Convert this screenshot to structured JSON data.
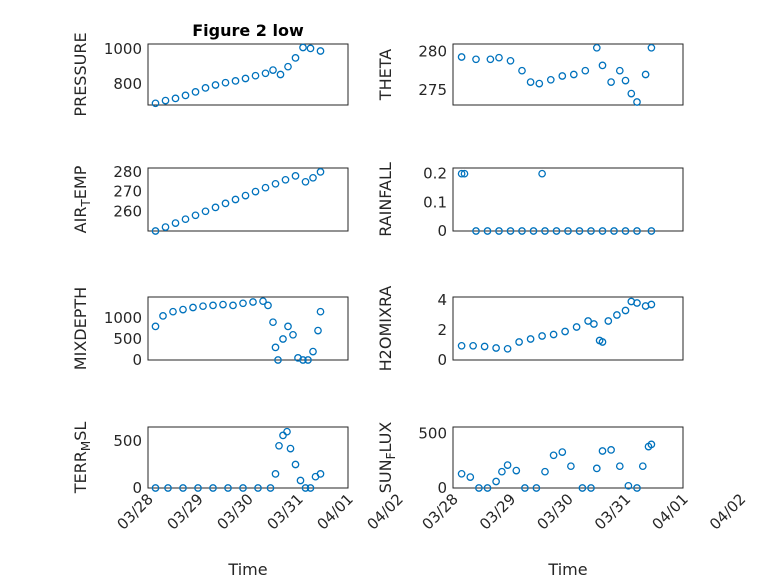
{
  "chart_data": [
    {
      "type": "scatter",
      "title": "Figure 2 low",
      "ylabel_main": "PRESSURE",
      "ylabel_sub": "",
      "ylabel_tail": "",
      "yticks": [
        800,
        1000
      ],
      "ylim": [
        680,
        1030
      ],
      "xlim": [
        0,
        4
      ],
      "xtick_labels": [],
      "xlabel": "",
      "x": [
        0.15,
        0.35,
        0.55,
        0.75,
        0.95,
        1.15,
        1.35,
        1.55,
        1.75,
        1.95,
        2.15,
        2.35,
        2.5,
        2.65,
        2.8,
        2.95,
        3.1,
        3.25,
        3.45
      ],
      "y": [
        690,
        705,
        718,
        735,
        755,
        778,
        795,
        808,
        818,
        832,
        848,
        862,
        880,
        855,
        900,
        950,
        1010,
        1005,
        990
      ]
    },
    {
      "type": "scatter",
      "title": "",
      "ylabel_main": "THETA",
      "ylabel_sub": "",
      "ylabel_tail": "",
      "yticks": [
        275,
        280
      ],
      "ylim": [
        273,
        281
      ],
      "xlim": [
        0,
        4
      ],
      "xtick_labels": [],
      "xlabel": "",
      "x": [
        0.15,
        0.4,
        0.65,
        0.8,
        1.0,
        1.2,
        1.35,
        1.5,
        1.7,
        1.9,
        2.1,
        2.3,
        2.5,
        2.6,
        2.75,
        2.9,
        3.0,
        3.1,
        3.2,
        3.35,
        3.45
      ],
      "y": [
        279.3,
        279.0,
        279.0,
        279.2,
        278.8,
        277.5,
        276.0,
        275.8,
        276.3,
        276.8,
        277.0,
        277.5,
        280.5,
        278.2,
        276.0,
        277.5,
        276.2,
        274.5,
        273.4,
        277.0,
        280.5
      ]
    },
    {
      "type": "scatter",
      "title": "",
      "ylabel_main": "AIR",
      "ylabel_sub": "T",
      "ylabel_tail": "EMP",
      "yticks": [
        260,
        270,
        280
      ],
      "ylim": [
        250,
        282
      ],
      "xlim": [
        0,
        4
      ],
      "xtick_labels": [],
      "xlabel": "",
      "x": [
        0.15,
        0.35,
        0.55,
        0.75,
        0.95,
        1.15,
        1.35,
        1.55,
        1.75,
        1.95,
        2.15,
        2.35,
        2.55,
        2.75,
        2.95,
        3.15,
        3.3,
        3.45
      ],
      "y": [
        250,
        252,
        254,
        256,
        258,
        260,
        262,
        264,
        266,
        268,
        270,
        272,
        274,
        276,
        278,
        275,
        277,
        280
      ]
    },
    {
      "type": "scatter",
      "title": "",
      "ylabel_main": "RAINFALL",
      "ylabel_sub": "",
      "ylabel_tail": "",
      "yticks": [
        0,
        0.1,
        0.2
      ],
      "ylim": [
        0,
        0.22
      ],
      "xlim": [
        0,
        4
      ],
      "xtick_labels": [],
      "xlabel": "",
      "x": [
        0.15,
        0.2,
        0.4,
        0.6,
        0.8,
        1.0,
        1.2,
        1.4,
        1.55,
        1.6,
        1.8,
        2.0,
        2.2,
        2.4,
        2.6,
        2.8,
        3.0,
        3.2,
        3.45
      ],
      "y": [
        0.2,
        0.2,
        0,
        0,
        0,
        0,
        0,
        0,
        0.2,
        0,
        0,
        0,
        0,
        0,
        0,
        0,
        0,
        0,
        0
      ]
    },
    {
      "type": "scatter",
      "title": "",
      "ylabel_main": "MIXDEPTH",
      "ylabel_sub": "",
      "ylabel_tail": "",
      "yticks": [
        0,
        500,
        1000
      ],
      "ylim": [
        0,
        1500
      ],
      "xlim": [
        0,
        4
      ],
      "xtick_labels": [],
      "xlabel": "",
      "x": [
        0.15,
        0.3,
        0.5,
        0.7,
        0.9,
        1.1,
        1.3,
        1.5,
        1.7,
        1.9,
        2.1,
        2.3,
        2.4,
        2.5,
        2.55,
        2.6,
        2.7,
        2.8,
        2.9,
        3.0,
        3.1,
        3.2,
        3.3,
        3.4,
        3.45
      ],
      "y": [
        800,
        1050,
        1150,
        1200,
        1250,
        1280,
        1300,
        1320,
        1300,
        1350,
        1380,
        1400,
        1300,
        900,
        300,
        0,
        500,
        800,
        600,
        50,
        0,
        0,
        200,
        700,
        1150
      ]
    },
    {
      "type": "scatter",
      "title": "",
      "ylabel_main": "H2OMIXRA",
      "ylabel_sub": "",
      "ylabel_tail": "",
      "yticks": [
        0,
        2,
        4
      ],
      "ylim": [
        0,
        4.2
      ],
      "xlim": [
        0,
        4
      ],
      "xtick_labels": [],
      "xlabel": "",
      "x": [
        0.15,
        0.35,
        0.55,
        0.75,
        0.95,
        1.15,
        1.35,
        1.55,
        1.75,
        1.95,
        2.15,
        2.35,
        2.45,
        2.55,
        2.6,
        2.7,
        2.85,
        3.0,
        3.1,
        3.2,
        3.35,
        3.45
      ],
      "y": [
        0.95,
        0.95,
        0.9,
        0.8,
        0.75,
        1.2,
        1.4,
        1.6,
        1.7,
        1.9,
        2.2,
        2.6,
        2.4,
        1.3,
        1.2,
        2.6,
        3.0,
        3.3,
        3.9,
        3.8,
        3.6,
        3.7
      ]
    },
    {
      "type": "scatter",
      "title": "",
      "ylabel_main": "TERR",
      "ylabel_sub": "M",
      "ylabel_tail": "SL",
      "yticks": [
        0,
        500
      ],
      "ylim": [
        0,
        650
      ],
      "xlim": [
        0,
        4
      ],
      "xtick_labels": [
        "03/28",
        "03/29",
        "03/30",
        "03/31",
        "04/01",
        "04/02"
      ],
      "xlabel": "Time",
      "x": [
        0.15,
        0.4,
        0.7,
        1.0,
        1.3,
        1.6,
        1.9,
        2.2,
        2.45,
        2.55,
        2.62,
        2.7,
        2.78,
        2.85,
        2.95,
        3.05,
        3.15,
        3.25,
        3.35,
        3.45
      ],
      "y": [
        0,
        0,
        0,
        0,
        0,
        0,
        0,
        0,
        0,
        150,
        450,
        560,
        600,
        420,
        250,
        80,
        0,
        0,
        120,
        150
      ]
    },
    {
      "type": "scatter",
      "title": "",
      "ylabel_main": "SUN",
      "ylabel_sub": "F",
      "ylabel_tail": "LUX",
      "yticks": [
        0,
        500
      ],
      "ylim": [
        0,
        560
      ],
      "xlim": [
        0,
        4
      ],
      "xtick_labels": [
        "03/28",
        "03/29",
        "03/30",
        "03/31",
        "04/01",
        "04/02"
      ],
      "xlabel": "Time",
      "x": [
        0.15,
        0.3,
        0.45,
        0.6,
        0.75,
        0.85,
        0.95,
        1.1,
        1.25,
        1.45,
        1.6,
        1.75,
        1.9,
        2.05,
        2.25,
        2.4,
        2.5,
        2.6,
        2.75,
        2.9,
        3.05,
        3.2,
        3.3,
        3.4,
        3.45
      ],
      "y": [
        130,
        100,
        0,
        0,
        60,
        150,
        210,
        160,
        0,
        0,
        150,
        300,
        330,
        200,
        0,
        0,
        180,
        340,
        350,
        200,
        20,
        0,
        200,
        380,
        400
      ]
    }
  ]
}
